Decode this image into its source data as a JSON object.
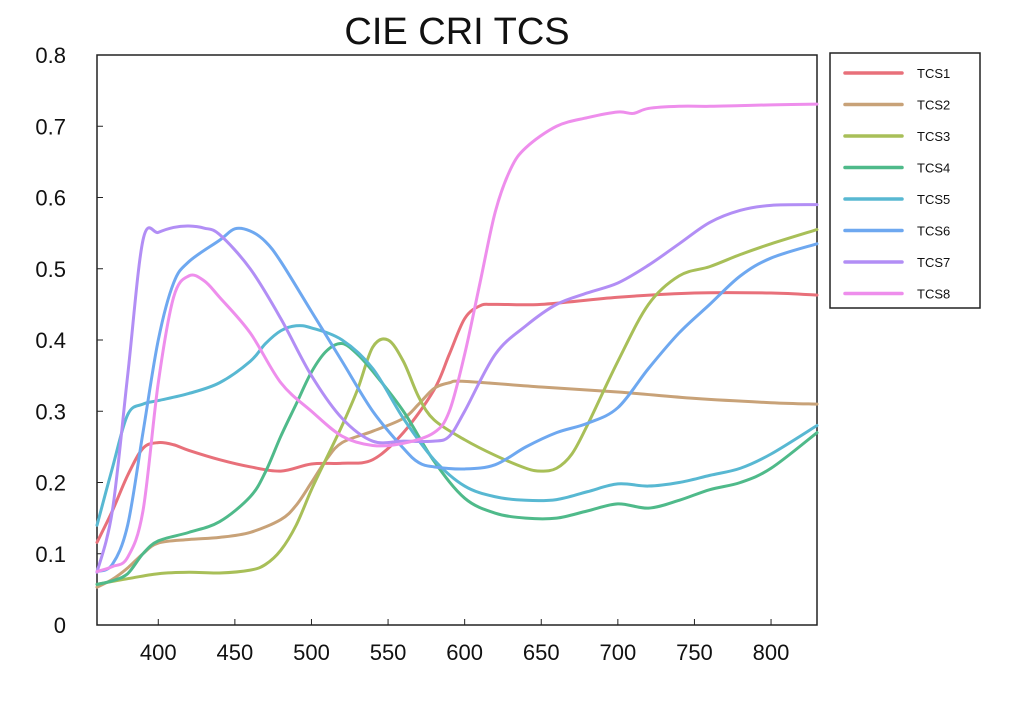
{
  "chart_data": {
    "type": "line",
    "title": "CIE CRI TCS",
    "xlabel": "",
    "ylabel": "",
    "xlim": [
      360,
      830
    ],
    "ylim": [
      0,
      0.8
    ],
    "xticks": [
      400,
      450,
      500,
      550,
      600,
      650,
      700,
      750,
      800
    ],
    "yticks": [
      0,
      0.1,
      0.2,
      0.3,
      0.4,
      0.5,
      0.6,
      0.7,
      0.8
    ],
    "xtick_labels": [
      "400",
      "450",
      "500",
      "550",
      "600",
      "650",
      "700",
      "750",
      "800"
    ],
    "ytick_labels": [
      "0",
      "0.1",
      "0.2",
      "0.3",
      "0.4",
      "0.5",
      "0.6",
      "0.7",
      "0.8"
    ],
    "grid": false,
    "legend_position": "outside-right",
    "series": [
      {
        "name": "TCS1",
        "color": "#e8707a",
        "x": [
          360,
          370,
          380,
          390,
          400,
          410,
          420,
          440,
          460,
          480,
          500,
          520,
          540,
          560,
          580,
          590,
          600,
          610,
          620,
          650,
          700,
          750,
          800,
          830
        ],
        "y": [
          0.116,
          0.16,
          0.21,
          0.248,
          0.256,
          0.253,
          0.245,
          0.232,
          0.222,
          0.216,
          0.226,
          0.227,
          0.232,
          0.27,
          0.33,
          0.38,
          0.43,
          0.448,
          0.45,
          0.45,
          0.46,
          0.466,
          0.466,
          0.463
        ]
      },
      {
        "name": "TCS2",
        "color": "#c8a278",
        "x": [
          360,
          370,
          380,
          390,
          400,
          420,
          440,
          460,
          480,
          490,
          500,
          510,
          520,
          540,
          560,
          570,
          580,
          590,
          600,
          650,
          700,
          750,
          800,
          830
        ],
        "y": [
          0.053,
          0.064,
          0.08,
          0.1,
          0.115,
          0.12,
          0.123,
          0.13,
          0.148,
          0.168,
          0.2,
          0.233,
          0.256,
          0.272,
          0.29,
          0.31,
          0.332,
          0.34,
          0.342,
          0.334,
          0.327,
          0.318,
          0.312,
          0.31
        ]
      },
      {
        "name": "TCS3",
        "color": "#a8bf58",
        "x": [
          360,
          380,
          400,
          420,
          440,
          460,
          470,
          480,
          490,
          500,
          510,
          520,
          530,
          540,
          550,
          560,
          570,
          580,
          600,
          620,
          640,
          650,
          660,
          670,
          680,
          700,
          720,
          740,
          760,
          780,
          800,
          830
        ],
        "y": [
          0.057,
          0.065,
          0.072,
          0.074,
          0.073,
          0.077,
          0.085,
          0.105,
          0.14,
          0.19,
          0.235,
          0.28,
          0.33,
          0.39,
          0.4,
          0.37,
          0.32,
          0.288,
          0.26,
          0.238,
          0.22,
          0.216,
          0.22,
          0.24,
          0.28,
          0.37,
          0.45,
          0.49,
          0.503,
          0.52,
          0.535,
          0.555
        ]
      },
      {
        "name": "TCS4",
        "color": "#4fba8a",
        "x": [
          360,
          370,
          380,
          390,
          400,
          420,
          440,
          460,
          470,
          480,
          490,
          500,
          510,
          520,
          530,
          540,
          560,
          580,
          600,
          620,
          640,
          660,
          680,
          700,
          720,
          740,
          760,
          780,
          800,
          830
        ],
        "y": [
          0.057,
          0.062,
          0.072,
          0.1,
          0.118,
          0.13,
          0.145,
          0.18,
          0.215,
          0.265,
          0.31,
          0.355,
          0.385,
          0.395,
          0.38,
          0.356,
          0.3,
          0.23,
          0.178,
          0.157,
          0.15,
          0.15,
          0.16,
          0.17,
          0.164,
          0.175,
          0.19,
          0.2,
          0.22,
          0.27
        ]
      },
      {
        "name": "TCS5",
        "color": "#58b8d2",
        "x": [
          360,
          370,
          380,
          390,
          400,
          420,
          440,
          460,
          470,
          480,
          490,
          500,
          520,
          540,
          560,
          580,
          600,
          620,
          640,
          660,
          680,
          700,
          720,
          740,
          760,
          780,
          800,
          830
        ],
        "y": [
          0.14,
          0.22,
          0.295,
          0.31,
          0.315,
          0.325,
          0.34,
          0.37,
          0.395,
          0.413,
          0.42,
          0.417,
          0.4,
          0.36,
          0.29,
          0.232,
          0.195,
          0.18,
          0.175,
          0.176,
          0.187,
          0.198,
          0.195,
          0.2,
          0.21,
          0.22,
          0.24,
          0.28
        ]
      },
      {
        "name": "TCS6",
        "color": "#6ea8f0",
        "x": [
          360,
          370,
          380,
          390,
          400,
          410,
          420,
          440,
          450,
          460,
          470,
          480,
          500,
          520,
          540,
          560,
          570,
          580,
          600,
          620,
          640,
          660,
          680,
          700,
          720,
          740,
          760,
          780,
          800,
          830
        ],
        "y": [
          0.075,
          0.085,
          0.14,
          0.27,
          0.4,
          0.48,
          0.51,
          0.54,
          0.556,
          0.553,
          0.538,
          0.51,
          0.44,
          0.37,
          0.3,
          0.248,
          0.228,
          0.222,
          0.219,
          0.225,
          0.25,
          0.27,
          0.283,
          0.305,
          0.36,
          0.41,
          0.45,
          0.49,
          0.515,
          0.535
        ]
      },
      {
        "name": "TCS7",
        "color": "#b28ef5",
        "x": [
          360,
          370,
          380,
          390,
          400,
          410,
          420,
          430,
          440,
          460,
          480,
          500,
          520,
          540,
          560,
          580,
          590,
          600,
          620,
          640,
          660,
          680,
          700,
          720,
          740,
          760,
          780,
          800,
          830
        ],
        "y": [
          0.074,
          0.16,
          0.35,
          0.54,
          0.551,
          0.558,
          0.56,
          0.557,
          0.548,
          0.5,
          0.43,
          0.35,
          0.29,
          0.258,
          0.258,
          0.258,
          0.265,
          0.3,
          0.38,
          0.42,
          0.45,
          0.466,
          0.48,
          0.505,
          0.535,
          0.565,
          0.582,
          0.589,
          0.59
        ]
      },
      {
        "name": "TCS8",
        "color": "#ee8eec",
        "x": [
          360,
          370,
          380,
          390,
          400,
          410,
          420,
          430,
          440,
          460,
          480,
          500,
          520,
          540,
          560,
          580,
          590,
          600,
          610,
          620,
          630,
          640,
          660,
          680,
          700,
          710,
          720,
          740,
          760,
          780,
          800,
          830
        ],
        "y": [
          0.075,
          0.082,
          0.095,
          0.16,
          0.34,
          0.46,
          0.49,
          0.483,
          0.46,
          0.41,
          0.34,
          0.3,
          0.265,
          0.252,
          0.255,
          0.27,
          0.3,
          0.38,
          0.48,
          0.58,
          0.64,
          0.67,
          0.7,
          0.712,
          0.72,
          0.718,
          0.725,
          0.728,
          0.728,
          0.729,
          0.73,
          0.731
        ]
      }
    ]
  }
}
